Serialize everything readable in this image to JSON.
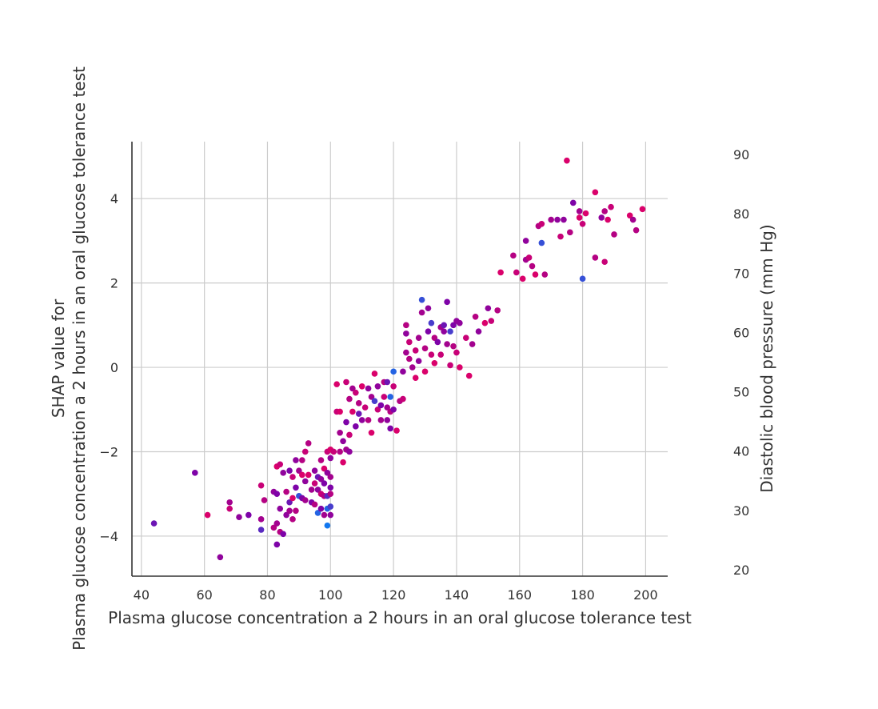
{
  "chart_data": {
    "type": "scatter",
    "title": "",
    "xlabel": "Plasma glucose concentration a 2 hours in an oral glucose tolerance test",
    "ylabel_lines": [
      "SHAP value for",
      "Plasma glucose concentration a 2 hours in an oral glucose tolerance test"
    ],
    "colorbar_label": "Diastolic blood pressure (mm Hg)",
    "xlim": [
      37,
      207
    ],
    "ylim": [
      -4.95,
      5.35
    ],
    "x_ticks": [
      40,
      60,
      80,
      100,
      120,
      140,
      160,
      180,
      200
    ],
    "y_ticks": [
      -4,
      -2,
      0,
      2,
      4
    ],
    "color_ticks": [
      20,
      30,
      40,
      50,
      60,
      70,
      80,
      90
    ],
    "color_range": [
      20,
      90
    ],
    "grid": true,
    "colormap": [
      "#008afb",
      "#7e03a8",
      "#ff0052"
    ],
    "points": [
      [
        44,
        -3.7,
        50
      ],
      [
        57,
        -2.5,
        55
      ],
      [
        61,
        -3.5,
        80
      ],
      [
        65,
        -4.5,
        60
      ],
      [
        68,
        -3.2,
        65
      ],
      [
        68,
        -3.35,
        75
      ],
      [
        71,
        -3.55,
        60
      ],
      [
        74,
        -3.5,
        55
      ],
      [
        78,
        -2.8,
        75
      ],
      [
        78,
        -3.6,
        65
      ],
      [
        78,
        -3.85,
        45
      ],
      [
        79,
        -3.15,
        70
      ],
      [
        82,
        -2.95,
        60
      ],
      [
        82,
        -3.8,
        70
      ],
      [
        83,
        -2.35,
        80
      ],
      [
        83,
        -3.0,
        55
      ],
      [
        83,
        -3.7,
        65
      ],
      [
        83,
        -4.2,
        55
      ],
      [
        84,
        -2.3,
        75
      ],
      [
        84,
        -3.35,
        60
      ],
      [
        84,
        -3.9,
        70
      ],
      [
        85,
        -2.5,
        60
      ],
      [
        85,
        -3.95,
        55
      ],
      [
        86,
        -2.95,
        70
      ],
      [
        86,
        -3.5,
        60
      ],
      [
        87,
        -2.45,
        55
      ],
      [
        87,
        -3.2,
        50
      ],
      [
        87,
        -3.4,
        65
      ],
      [
        88,
        -2.6,
        75
      ],
      [
        88,
        -3.1,
        80
      ],
      [
        88,
        -3.6,
        70
      ],
      [
        89,
        -2.2,
        60
      ],
      [
        89,
        -2.85,
        55
      ],
      [
        89,
        -3.4,
        70
      ],
      [
        90,
        -2.45,
        65
      ],
      [
        90,
        -3.05,
        35
      ],
      [
        91,
        -2.55,
        80
      ],
      [
        91,
        -3.1,
        55
      ],
      [
        91,
        -2.2,
        70
      ],
      [
        92,
        -2.0,
        75
      ],
      [
        92,
        -2.7,
        60
      ],
      [
        92,
        -3.15,
        65
      ],
      [
        93,
        -1.8,
        70
      ],
      [
        93,
        -2.55,
        80
      ],
      [
        94,
        -2.9,
        65
      ],
      [
        94,
        -3.2,
        55
      ],
      [
        95,
        -2.45,
        60
      ],
      [
        95,
        -2.75,
        75
      ],
      [
        95,
        -3.25,
        70
      ],
      [
        96,
        -2.6,
        50
      ],
      [
        96,
        -2.9,
        60
      ],
      [
        96,
        -3.45,
        30
      ],
      [
        97,
        -2.2,
        70
      ],
      [
        97,
        -2.65,
        60
      ],
      [
        97,
        -3.0,
        75
      ],
      [
        97,
        -3.35,
        55
      ],
      [
        98,
        -2.4,
        80
      ],
      [
        98,
        -2.75,
        55
      ],
      [
        98,
        -3.05,
        70
      ],
      [
        98,
        -3.5,
        65
      ],
      [
        99,
        -2.0,
        75
      ],
      [
        99,
        -2.5,
        60
      ],
      [
        99,
        -3.05,
        45
      ],
      [
        99,
        -3.35,
        30
      ],
      [
        99,
        -3.75,
        25
      ],
      [
        100,
        -1.95,
        80
      ],
      [
        100,
        -2.15,
        60
      ],
      [
        100,
        -2.6,
        65
      ],
      [
        100,
        -2.85,
        55
      ],
      [
        100,
        -3.0,
        70
      ],
      [
        100,
        -3.3,
        40
      ],
      [
        100,
        -3.5,
        60
      ],
      [
        101,
        -2.0,
        75
      ],
      [
        102,
        -0.4,
        80
      ],
      [
        102,
        -1.05,
        75
      ],
      [
        103,
        -1.05,
        80
      ],
      [
        103,
        -1.55,
        65
      ],
      [
        103,
        -2.0,
        70
      ],
      [
        104,
        -1.75,
        60
      ],
      [
        104,
        -2.25,
        80
      ],
      [
        105,
        -0.35,
        75
      ],
      [
        105,
        -1.3,
        55
      ],
      [
        105,
        -1.95,
        65
      ],
      [
        106,
        -0.75,
        70
      ],
      [
        106,
        -1.6,
        75
      ],
      [
        106,
        -2.0,
        60
      ],
      [
        107,
        -0.5,
        65
      ],
      [
        107,
        -1.05,
        80
      ],
      [
        108,
        -0.6,
        75
      ],
      [
        108,
        -1.4,
        55
      ],
      [
        109,
        -0.85,
        70
      ],
      [
        109,
        -1.1,
        50
      ],
      [
        110,
        -0.45,
        80
      ],
      [
        110,
        -1.25,
        60
      ],
      [
        111,
        -0.95,
        75
      ],
      [
        112,
        -0.5,
        60
      ],
      [
        112,
        -1.25,
        70
      ],
      [
        113,
        -0.7,
        65
      ],
      [
        113,
        -1.55,
        80
      ],
      [
        114,
        -0.15,
        80
      ],
      [
        114,
        -0.8,
        40
      ],
      [
        115,
        -1.0,
        75
      ],
      [
        115,
        -0.45,
        60
      ],
      [
        116,
        -0.9,
        55
      ],
      [
        116,
        -1.25,
        65
      ],
      [
        117,
        -0.35,
        70
      ],
      [
        117,
        -0.7,
        75
      ],
      [
        118,
        -0.95,
        65
      ],
      [
        118,
        -1.25,
        60
      ],
      [
        118,
        -0.35,
        50
      ],
      [
        119,
        -1.45,
        55
      ],
      [
        119,
        -0.7,
        30
      ],
      [
        119,
        -1.05,
        70
      ],
      [
        120,
        -0.1,
        30
      ],
      [
        120,
        -0.45,
        75
      ],
      [
        120,
        -1.0,
        55
      ],
      [
        121,
        -1.5,
        80
      ],
      [
        122,
        -0.8,
        70
      ],
      [
        123,
        -0.75,
        75
      ],
      [
        123,
        -0.1,
        60
      ],
      [
        124,
        0.35,
        65
      ],
      [
        124,
        0.8,
        60
      ],
      [
        124,
        1.0,
        70
      ],
      [
        125,
        0.6,
        75
      ],
      [
        125,
        0.2,
        70
      ],
      [
        126,
        0.0,
        65
      ],
      [
        127,
        -0.25,
        80
      ],
      [
        127,
        0.4,
        75
      ],
      [
        128,
        0.7,
        65
      ],
      [
        128,
        0.15,
        60
      ],
      [
        129,
        1.6,
        35
      ],
      [
        129,
        1.3,
        65
      ],
      [
        130,
        0.45,
        70
      ],
      [
        130,
        -0.1,
        80
      ],
      [
        131,
        1.4,
        60
      ],
      [
        131,
        0.85,
        55
      ],
      [
        132,
        1.05,
        40
      ],
      [
        132,
        0.3,
        75
      ],
      [
        133,
        0.7,
        70
      ],
      [
        133,
        0.1,
        80
      ],
      [
        134,
        0.6,
        55
      ],
      [
        135,
        0.95,
        65
      ],
      [
        135,
        0.3,
        75
      ],
      [
        136,
        0.85,
        60
      ],
      [
        136,
        1.0,
        50
      ],
      [
        137,
        1.55,
        55
      ],
      [
        137,
        0.55,
        65
      ],
      [
        138,
        0.85,
        40
      ],
      [
        138,
        0.05,
        75
      ],
      [
        139,
        1.0,
        55
      ],
      [
        139,
        0.5,
        70
      ],
      [
        140,
        1.1,
        60
      ],
      [
        140,
        0.35,
        75
      ],
      [
        141,
        1.05,
        60
      ],
      [
        141,
        0.0,
        80
      ],
      [
        143,
        0.7,
        75
      ],
      [
        144,
        -0.2,
        80
      ],
      [
        145,
        0.55,
        65
      ],
      [
        146,
        1.2,
        70
      ],
      [
        147,
        0.85,
        60
      ],
      [
        149,
        1.05,
        80
      ],
      [
        150,
        1.4,
        60
      ],
      [
        151,
        1.1,
        75
      ],
      [
        153,
        1.35,
        70
      ],
      [
        154,
        2.25,
        80
      ],
      [
        158,
        2.65,
        70
      ],
      [
        159,
        2.25,
        75
      ],
      [
        161,
        2.1,
        80
      ],
      [
        162,
        3.0,
        60
      ],
      [
        162,
        2.55,
        65
      ],
      [
        163,
        2.6,
        75
      ],
      [
        164,
        2.4,
        70
      ],
      [
        165,
        2.2,
        80
      ],
      [
        166,
        3.35,
        70
      ],
      [
        167,
        3.4,
        75
      ],
      [
        167,
        2.95,
        35
      ],
      [
        168,
        2.2,
        70
      ],
      [
        170,
        3.5,
        65
      ],
      [
        172,
        3.5,
        60
      ],
      [
        173,
        3.1,
        75
      ],
      [
        174,
        3.5,
        60
      ],
      [
        175,
        4.9,
        80
      ],
      [
        176,
        3.2,
        70
      ],
      [
        177,
        3.9,
        55
      ],
      [
        179,
        3.7,
        65
      ],
      [
        179,
        3.55,
        80
      ],
      [
        180,
        2.1,
        35
      ],
      [
        180,
        3.4,
        75
      ],
      [
        181,
        3.65,
        80
      ],
      [
        184,
        4.15,
        80
      ],
      [
        184,
        2.6,
        70
      ],
      [
        186,
        3.55,
        60
      ],
      [
        187,
        2.5,
        75
      ],
      [
        187,
        3.7,
        70
      ],
      [
        188,
        3.5,
        80
      ],
      [
        189,
        3.8,
        75
      ],
      [
        190,
        3.15,
        70
      ],
      [
        195,
        3.6,
        80
      ],
      [
        196,
        3.5,
        65
      ],
      [
        197,
        3.25,
        70
      ],
      [
        199,
        3.75,
        80
      ]
    ]
  }
}
